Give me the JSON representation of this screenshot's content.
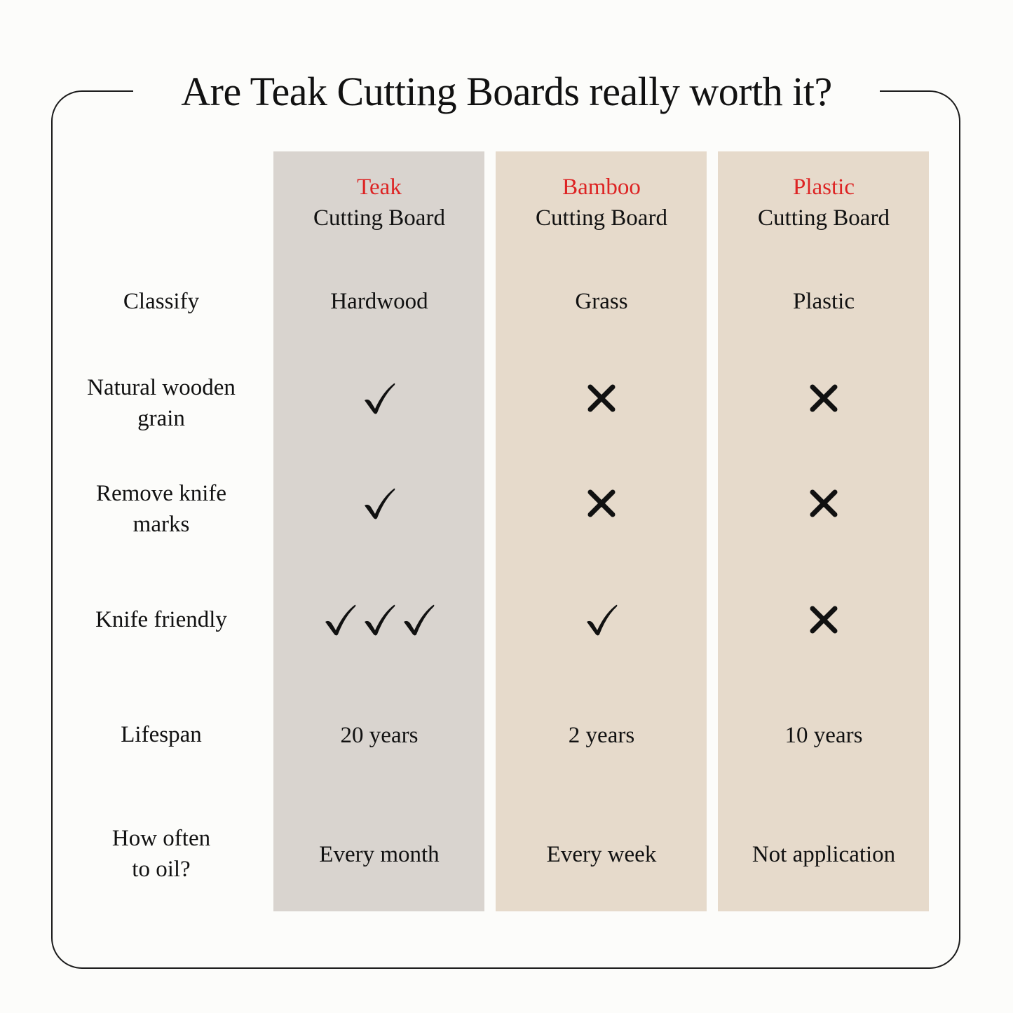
{
  "title": "Are Teak Cutting Boards really worth it?",
  "colors": {
    "accent_red": "#dd2323",
    "teak_column": "#d9d4cf",
    "other_column": "#e6dacb",
    "frame": "#1a1a1a"
  },
  "columns": [
    {
      "name": "Teak",
      "subtitle": "Cutting Board"
    },
    {
      "name": "Bamboo",
      "subtitle": "Cutting Board"
    },
    {
      "name": "Plastic",
      "subtitle": "Cutting Board"
    }
  ],
  "rows": [
    {
      "label": "Classify",
      "values": [
        "Hardwood",
        "Grass",
        "Plastic"
      ]
    },
    {
      "label_line1": "Natural wooden",
      "label_line2": "grain",
      "marks": [
        {
          "icon": "check-icon",
          "count": 1
        },
        {
          "icon": "x-icon",
          "count": 1
        },
        {
          "icon": "x-icon",
          "count": 1
        }
      ]
    },
    {
      "label_line1": "Remove knife",
      "label_line2": "marks",
      "marks": [
        {
          "icon": "check-icon",
          "count": 1
        },
        {
          "icon": "x-icon",
          "count": 1
        },
        {
          "icon": "x-icon",
          "count": 1
        }
      ]
    },
    {
      "label": "Knife friendly",
      "marks": [
        {
          "icon": "check-icon",
          "count": 3
        },
        {
          "icon": "check-icon",
          "count": 1
        },
        {
          "icon": "x-icon",
          "count": 1
        }
      ]
    },
    {
      "label": "Lifespan",
      "values": [
        "20 years",
        "2 years",
        "10 years"
      ]
    },
    {
      "label_line1": "How often",
      "label_line2": "to oil?",
      "values": [
        "Every month",
        "Every week",
        "Not application"
      ]
    }
  ]
}
